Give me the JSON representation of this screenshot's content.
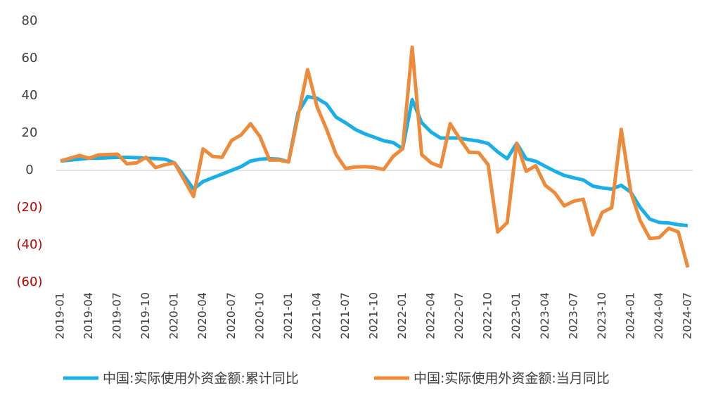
{
  "chart_data": {
    "type": "line",
    "categories": [
      "2019-01",
      null,
      null,
      "2019-04",
      null,
      null,
      "2019-07",
      null,
      null,
      "2019-10",
      null,
      null,
      "2020-01",
      null,
      null,
      "2020-04",
      null,
      null,
      "2020-07",
      null,
      null,
      "2020-10",
      null,
      null,
      "2021-01",
      null,
      null,
      "2021-04",
      null,
      null,
      "2021-07",
      null,
      null,
      "2021-10",
      null,
      null,
      "2022-01",
      null,
      null,
      "2022-04",
      null,
      null,
      "2022-07",
      null,
      null,
      "2022-10",
      null,
      null,
      "2023-01",
      null,
      null,
      "2023-04",
      null,
      null,
      "2023-07",
      null,
      null,
      "2023-10",
      null,
      null,
      "2024-01",
      null,
      null,
      "2024-04",
      null,
      null,
      "2024-07"
    ],
    "series": [
      {
        "name": "中国:实际使用外资金额:累计同比",
        "color": "#1aafe6",
        "values": [
          5,
          5.5,
          6,
          6.5,
          6.5,
          6.8,
          7,
          7,
          6.8,
          6.5,
          6.3,
          6,
          4,
          -3,
          -10,
          -6,
          -4,
          -2,
          0,
          2,
          5,
          6,
          6.3,
          6,
          4.5,
          31,
          39.5,
          38.6,
          35.5,
          28.5,
          25.5,
          22,
          19.6,
          17.8,
          15.9,
          14.9,
          11.6,
          37.9,
          25.6,
          20.5,
          17.3,
          17.4,
          17.3,
          16.4,
          15.7,
          14.4,
          9.9,
          6.3,
          14.5,
          6.1,
          4.9,
          2.2,
          -0.4,
          -2.7,
          -4,
          -5.1,
          -8.4,
          -9.4,
          -10,
          -8,
          -11.7,
          -19.9,
          -26.1,
          -27.9,
          -28.2,
          -29.1,
          -29.6
        ]
      },
      {
        "name": "中国:实际使用外资金额:当月同比",
        "color": "#ed8b3a",
        "values": [
          5,
          6.5,
          8,
          6.5,
          8.3,
          8.5,
          8.7,
          3.5,
          4,
          7,
          1.5,
          3,
          4,
          -5,
          -14,
          11.5,
          7.5,
          7,
          16,
          19,
          25,
          18,
          5.5,
          5.5,
          4.5,
          29,
          54,
          34,
          22,
          8.5,
          1,
          1.8,
          2,
          1.6,
          0.5,
          7.5,
          11.6,
          66,
          8.5,
          4,
          2,
          25,
          17,
          9.7,
          9.5,
          3,
          -33,
          -28,
          14.5,
          -0.5,
          2.5,
          -8,
          -12,
          -19,
          -16.5,
          -15.5,
          -34.5,
          -22.5,
          -20,
          22,
          -11.7,
          -27,
          -36.5,
          -36,
          -31,
          -33,
          -52
        ]
      }
    ],
    "ylim": [
      -60,
      80
    ],
    "yticks": [
      80,
      60,
      40,
      20,
      0,
      {
        "value": -20,
        "label": "(20)"
      },
      {
        "value": -40,
        "label": "(40)"
      },
      {
        "value": -60,
        "label": "(60)"
      }
    ],
    "negative_tick_color": "#c00000",
    "grid": false,
    "legend": "bottom"
  }
}
